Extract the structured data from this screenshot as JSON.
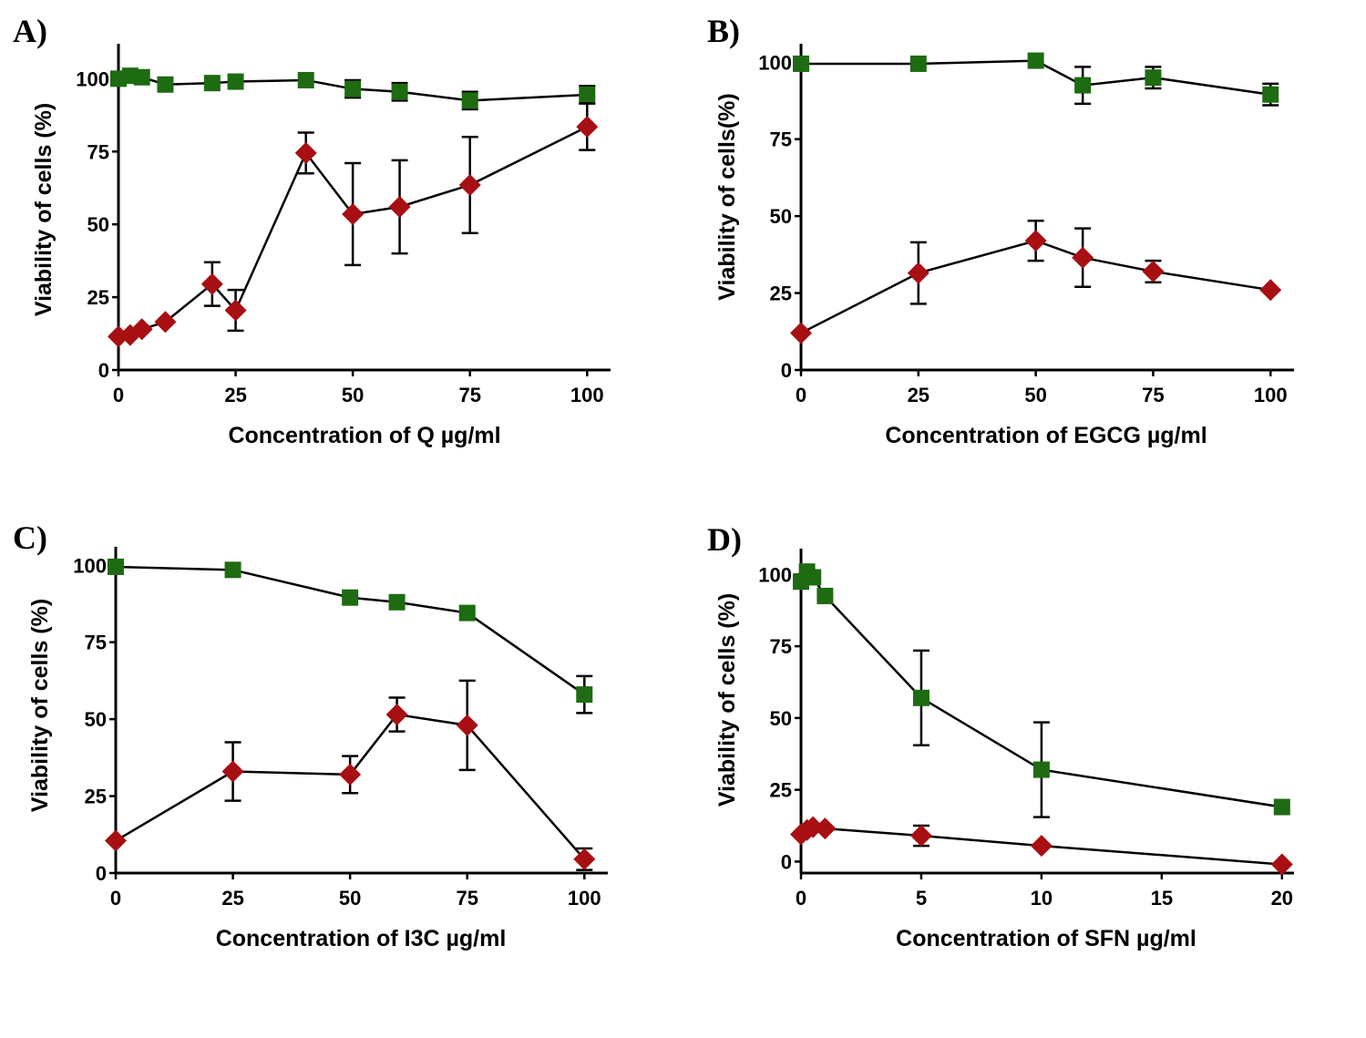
{
  "colors": {
    "green_series": "#1e6b12",
    "red_series": "#a80f12"
  },
  "chart_data": [
    {
      "panel_label": "A)",
      "type": "line",
      "xlabel": "Concentration of Q µg/ml",
      "ylabel": "Viability of cells (%)",
      "xlim": [
        0,
        105
      ],
      "ylim": [
        0,
        112
      ],
      "xticks": [
        0,
        25,
        50,
        75,
        100
      ],
      "yticks": [
        0,
        25,
        50,
        75,
        100
      ],
      "series": [
        {
          "marker": "square",
          "color": "#1e6b12",
          "x": [
            0,
            2.5,
            5,
            10,
            20,
            25,
            40,
            50,
            60,
            75,
            100
          ],
          "y": [
            100,
            101,
            100.5,
            98,
            98.5,
            99,
            99.5,
            96.5,
            95.5,
            92.5,
            94.5
          ],
          "err": [
            0,
            0,
            0,
            0,
            0,
            0,
            0,
            3,
            3,
            3,
            3
          ]
        },
        {
          "marker": "diamond",
          "color": "#a80f12",
          "x": [
            0,
            2.5,
            5,
            10,
            20,
            25,
            40,
            50,
            60,
            75,
            100
          ],
          "y": [
            11.5,
            12,
            14,
            16.5,
            29.5,
            20.5,
            74.5,
            53.5,
            56,
            63.5,
            83.5
          ],
          "err": [
            0,
            0,
            0,
            0,
            7.5,
            7,
            7,
            17.5,
            16,
            16.5,
            8
          ]
        }
      ]
    },
    {
      "panel_label": "B)",
      "type": "line",
      "xlabel": "Concentration of EGCG µg/ml",
      "ylabel": "Viability of cells(%)",
      "xlim": [
        0,
        105
      ],
      "ylim": [
        0,
        106
      ],
      "xticks": [
        0,
        25,
        50,
        75,
        100
      ],
      "yticks": [
        0,
        25,
        50,
        75,
        100
      ],
      "series": [
        {
          "marker": "square",
          "color": "#1e6b12",
          "x": [
            0,
            25,
            50,
            60,
            75,
            100
          ],
          "y": [
            99.5,
            99.5,
            100.5,
            92.5,
            95,
            89.5
          ],
          "err": [
            0,
            0,
            0,
            6,
            3.5,
            3.5
          ]
        },
        {
          "marker": "diamond",
          "color": "#a80f12",
          "x": [
            0,
            25,
            50,
            60,
            75,
            100
          ],
          "y": [
            12,
            31.5,
            42,
            36.5,
            32,
            26
          ],
          "err": [
            0,
            10,
            6.5,
            9.5,
            3.5,
            0
          ]
        }
      ]
    },
    {
      "panel_label": "C)",
      "type": "line",
      "xlabel": "Concentration of I3C µg/ml",
      "ylabel": "Viability of cells (%)",
      "xlim": [
        0,
        105
      ],
      "ylim": [
        0,
        106
      ],
      "xticks": [
        0,
        25,
        50,
        75,
        100
      ],
      "yticks": [
        0,
        25,
        50,
        75,
        100
      ],
      "series": [
        {
          "marker": "square",
          "color": "#1e6b12",
          "x": [
            0,
            25,
            50,
            60,
            75,
            100
          ],
          "y": [
            99.5,
            98.5,
            89.5,
            88,
            84.5,
            58
          ],
          "err": [
            0,
            0,
            0,
            0,
            0,
            6
          ]
        },
        {
          "marker": "diamond",
          "color": "#a80f12",
          "x": [
            0,
            25,
            50,
            60,
            75,
            100
          ],
          "y": [
            10.5,
            33,
            32,
            51.5,
            48,
            4.5
          ],
          "err": [
            0,
            9.5,
            6,
            5.5,
            14.5,
            3.5
          ]
        }
      ]
    },
    {
      "panel_label": "D)",
      "type": "line",
      "xlabel": "Concentration of SFN µg/ml",
      "ylabel": "Viability of cells (%)",
      "xlim": [
        0,
        20.5
      ],
      "ylim": [
        -4,
        109
      ],
      "xticks": [
        0,
        5,
        10,
        15,
        20
      ],
      "yticks": [
        0,
        25,
        50,
        75,
        100
      ],
      "series": [
        {
          "marker": "square",
          "color": "#1e6b12",
          "x": [
            0,
            0.25,
            0.5,
            1,
            5,
            10,
            20
          ],
          "y": [
            97.5,
            101,
            99,
            92.5,
            57,
            32,
            19
          ],
          "err": [
            0,
            0,
            0,
            0,
            16.5,
            16.5,
            0
          ]
        },
        {
          "marker": "diamond",
          "color": "#a80f12",
          "x": [
            0,
            0.25,
            0.5,
            1,
            5,
            10,
            20
          ],
          "y": [
            9.5,
            11,
            12,
            11.5,
            9,
            5.5,
            -1
          ],
          "err": [
            0,
            0,
            0,
            0,
            3.5,
            0,
            0
          ]
        }
      ]
    }
  ]
}
